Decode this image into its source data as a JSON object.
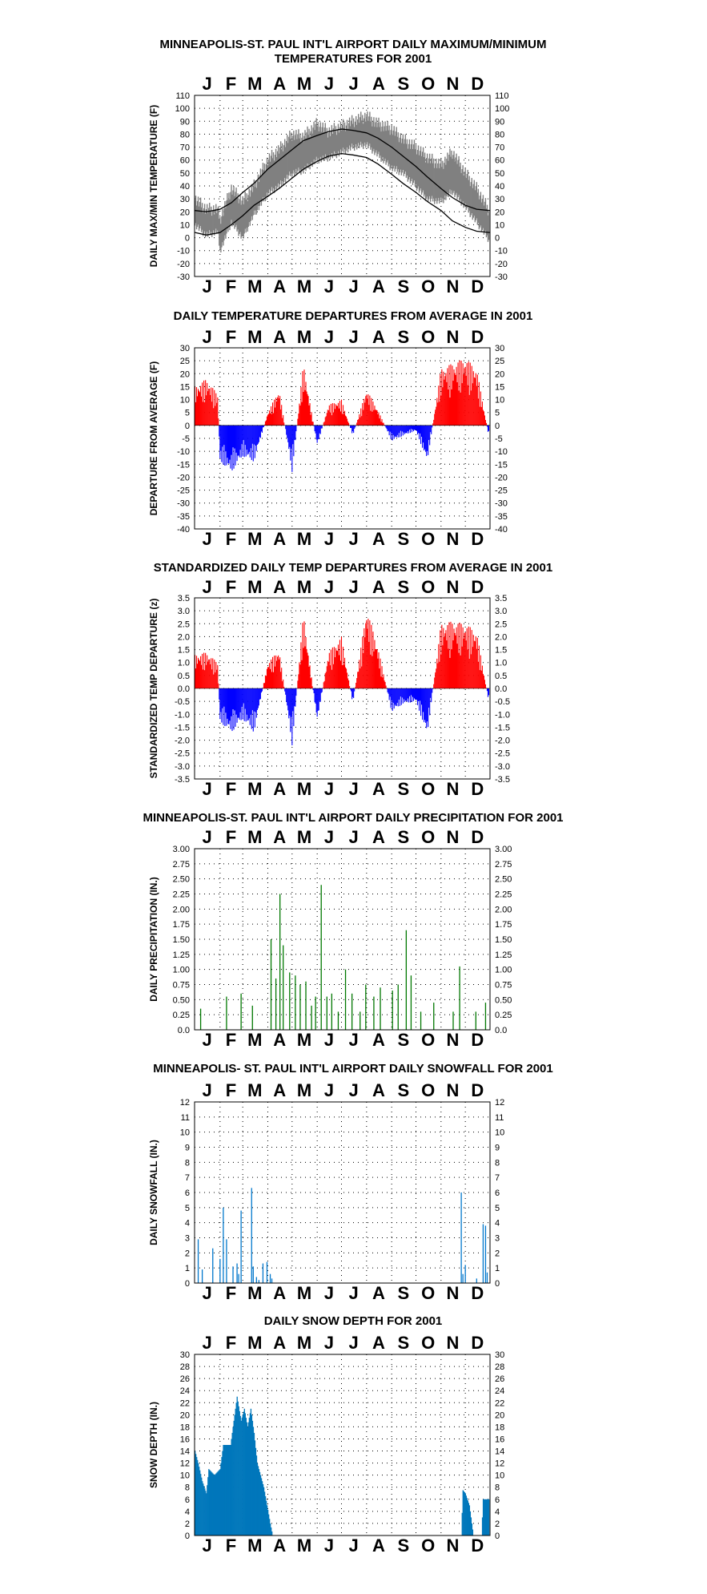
{
  "months": [
    "J",
    "F",
    "M",
    "A",
    "M",
    "J",
    "J",
    "A",
    "S",
    "O",
    "N",
    "D"
  ],
  "chart_data": [
    {
      "id": "temps",
      "type": "line",
      "title_lines": [
        "MINNEAPOLIS-ST. PAUL INT'L AIRPORT DAILY MAXIMUM/MINIMUM",
        "TEMPERATURES FOR 2001"
      ],
      "ylabel": "DAILY MAX/MIN TEMPERATURE (F)",
      "ylim": [
        -30,
        110
      ],
      "ytick_step": 10,
      "ytick_labels": [
        "-30",
        "-20",
        "-10",
        "0",
        "10",
        "20",
        "30",
        "40",
        "50",
        "60",
        "70",
        "80",
        "90",
        "100",
        "110"
      ],
      "grid": true,
      "x_unit": "day of year 2001 (1-365)",
      "series": [
        {
          "role": "daily observed max/min range",
          "color": "#808080",
          "x": [
            1,
            15,
            29,
            32,
            46,
            60,
            74,
            91,
            105,
            121,
            135,
            152,
            166,
            182,
            196,
            213,
            227,
            244,
            258,
            274,
            288,
            305,
            319,
            335,
            349,
            365
          ],
          "max": [
            30,
            22,
            22,
            14,
            38,
            28,
            40,
            60,
            68,
            80,
            78,
            88,
            82,
            86,
            90,
            94,
            88,
            84,
            76,
            70,
            62,
            56,
            66,
            50,
            38,
            20
          ],
          "min": [
            10,
            2,
            5,
            -10,
            12,
            0,
            18,
            34,
            40,
            50,
            52,
            60,
            62,
            66,
            70,
            72,
            64,
            54,
            50,
            40,
            30,
            28,
            36,
            24,
            12,
            -2
          ]
        },
        {
          "role": "normal maximum",
          "color": "#000000",
          "x": [
            1,
            15,
            32,
            46,
            60,
            74,
            91,
            105,
            121,
            135,
            152,
            166,
            182,
            196,
            213,
            227,
            244,
            258,
            274,
            288,
            305,
            319,
            335,
            349,
            365
          ],
          "values": [
            21,
            20,
            22,
            27,
            35,
            42,
            53,
            60,
            68,
            75,
            79,
            82,
            84,
            83,
            81,
            77,
            70,
            63,
            55,
            47,
            38,
            31,
            25,
            22,
            21
          ]
        },
        {
          "role": "normal minimum",
          "color": "#000000",
          "x": [
            1,
            15,
            32,
            46,
            60,
            74,
            91,
            105,
            121,
            135,
            152,
            166,
            182,
            196,
            213,
            227,
            244,
            258,
            274,
            288,
            305,
            319,
            335,
            349,
            365
          ],
          "values": [
            4,
            2,
            4,
            10,
            17,
            25,
            32,
            38,
            46,
            53,
            59,
            63,
            65,
            64,
            62,
            57,
            49,
            42,
            35,
            28,
            21,
            13,
            8,
            5,
            4
          ]
        }
      ]
    },
    {
      "id": "departures",
      "type": "bar",
      "title": "DAILY TEMPERATURE DEPARTURES FROM AVERAGE IN 2001",
      "ylabel": "DEPARTURE FROM AVERAGE (F)",
      "ylim": [
        -40,
        30
      ],
      "ytick_step": 5,
      "ytick_labels": [
        "-40",
        "-35",
        "-30",
        "-25",
        "-20",
        "-15",
        "-10",
        "-5",
        "0",
        "5",
        "10",
        "15",
        "20",
        "25",
        "30"
      ],
      "grid": true,
      "positive_color": "#ff0000",
      "negative_color": "#0000ff",
      "x_unit": "day of year 2001 (1-365)",
      "x": [
        1,
        15,
        29,
        32,
        46,
        60,
        74,
        91,
        105,
        121,
        135,
        152,
        166,
        182,
        196,
        213,
        227,
        244,
        258,
        274,
        288,
        305,
        319,
        335,
        349,
        365
      ],
      "values": [
        15,
        18,
        12,
        -14,
        -18,
        -12,
        -14,
        5,
        14,
        -18,
        24,
        -8,
        8,
        10,
        -4,
        14,
        6,
        -6,
        -4,
        -2,
        -14,
        22,
        24,
        26,
        22,
        -6
      ]
    },
    {
      "id": "standardized",
      "type": "bar",
      "title": "STANDARDIZED DAILY TEMP DEPARTURES FROM AVERAGE IN 2001",
      "ylabel": "STANDARDIZED TEMP DEPARTURE (z)",
      "ylim": [
        -3.5,
        3.5
      ],
      "ytick_step": 0.5,
      "ytick_labels": [
        "-3.5",
        "-3.0",
        "-2.5",
        "-2.0",
        "-1.5",
        "-1.0",
        "-0.5",
        "0.0",
        "0.5",
        "1.0",
        "1.5",
        "2.0",
        "2.5",
        "3.0",
        "3.5"
      ],
      "right_ytick_labels": [
        "-3.5",
        "-3.0",
        "-2.5",
        "-2.0",
        "-1.5",
        "-1.0",
        "-0.5",
        "0.0",
        "0.5",
        "1.0",
        "1.5",
        "2.0",
        "2.5",
        "3.0",
        "3.5"
      ],
      "grid": true,
      "positive_color": "#ff0000",
      "negative_color": "#0000ff",
      "x_unit": "day of year 2001 (1-365)",
      "x": [
        1,
        15,
        29,
        32,
        46,
        60,
        74,
        91,
        105,
        121,
        135,
        152,
        166,
        182,
        196,
        213,
        227,
        244,
        258,
        274,
        288,
        305,
        319,
        335,
        349,
        365
      ],
      "values": [
        1.3,
        1.4,
        1.0,
        -1.3,
        -1.7,
        -1.2,
        -1.7,
        1.0,
        1.5,
        -2.2,
        2.9,
        -1.3,
        1.4,
        2.0,
        -0.6,
        3.1,
        1.6,
        -0.9,
        -0.6,
        -0.5,
        -1.8,
        2.5,
        2.6,
        2.5,
        2.2,
        -0.7
      ]
    },
    {
      "id": "precip",
      "type": "bar",
      "title": "MINNEAPOLIS-ST. PAUL INT'L AIRPORT DAILY PRECIPITATION FOR 2001",
      "ylabel": "DAILY PRECIPITATION (IN.)",
      "ylim": [
        0,
        3
      ],
      "ytick_step": 0.25,
      "ytick_labels": [
        "0.0",
        "0.25",
        "0.50",
        "0.75",
        "1.00",
        "1.25",
        "1.50",
        "1.75",
        "2.00",
        "2.25",
        "2.50",
        "2.75",
        "3.00"
      ],
      "right_ytick_labels": [
        "0.0",
        "0.25",
        "0.50",
        "0.75",
        "1.00",
        "1.25",
        "1.50",
        "1.75",
        "2.00",
        "2.25",
        "2.50",
        "2.75",
        "3.00"
      ],
      "grid": true,
      "color": "#007700",
      "x_unit": "day of year 2001 (1-365)",
      "x": [
        8,
        40,
        58,
        72,
        95,
        101,
        106,
        110,
        118,
        125,
        131,
        138,
        145,
        150,
        157,
        164,
        170,
        178,
        187,
        195,
        205,
        212,
        222,
        230,
        245,
        252,
        262,
        268,
        280,
        296,
        320,
        328,
        348,
        360
      ],
      "values": [
        0.35,
        0.55,
        0.6,
        0.4,
        1.5,
        0.85,
        2.25,
        1.4,
        0.95,
        0.9,
        0.75,
        0.8,
        0.4,
        0.55,
        2.4,
        0.55,
        0.6,
        0.3,
        1.0,
        0.6,
        0.3,
        0.75,
        0.55,
        0.7,
        0.65,
        0.75,
        1.65,
        0.9,
        0.3,
        0.45,
        0.3,
        1.05,
        0.3,
        0.45
      ]
    },
    {
      "id": "snowfall",
      "type": "bar",
      "title": "MINNEAPOLIS- ST. PAUL INT'L AIRPORT DAILY SNOWFALL FOR 2001",
      "ylabel": "DAILY SNOWFALL (IN.)",
      "ylim": [
        0,
        12
      ],
      "ytick_step": 1,
      "ytick_labels": [
        "0",
        "1",
        "2",
        "3",
        "4",
        "5",
        "6",
        "7",
        "8",
        "9",
        "10",
        "11",
        "12"
      ],
      "right_ytick_labels": [
        "0",
        "1",
        "2",
        "3",
        "4",
        "5",
        "6",
        "7",
        "8",
        "9",
        "10",
        "11",
        "12"
      ],
      "grid": true,
      "color": "#0077cc",
      "x_unit": "day of year 2001 (1-365)",
      "x": [
        5,
        10,
        23,
        32,
        36,
        40,
        48,
        53,
        55,
        58,
        71,
        73,
        77,
        80,
        85,
        90,
        94,
        96,
        330,
        332,
        335,
        349,
        357,
        360,
        362
      ],
      "values": [
        2.9,
        0.9,
        2.3,
        1.6,
        5.0,
        2.9,
        1.1,
        1.3,
        0.6,
        4.8,
        6.3,
        1.1,
        0.4,
        0.2,
        1.3,
        1.4,
        0.6,
        0.3,
        6.0,
        0.6,
        1.2,
        0.3,
        3.9,
        3.8,
        0.7
      ]
    },
    {
      "id": "snowdepth",
      "type": "area",
      "title": "DAILY SNOW DEPTH FOR 2001",
      "ylabel": "SNOW DEPTH (IN.)",
      "ylim": [
        0,
        30
      ],
      "ytick_step": 2,
      "ytick_labels": [
        "0",
        "2",
        "4",
        "6",
        "8",
        "10",
        "12",
        "14",
        "16",
        "18",
        "20",
        "22",
        "24",
        "26",
        "28",
        "30"
      ],
      "right_ytick_labels": [
        "0",
        "2",
        "4",
        "6",
        "8",
        "10",
        "12",
        "14",
        "16",
        "18",
        "20",
        "22",
        "24",
        "26",
        "28",
        "30"
      ],
      "grid": true,
      "color": "#0077bb",
      "x_unit": "day of year 2001 (1-365)",
      "x": [
        1,
        5,
        10,
        15,
        18,
        25,
        32,
        36,
        45,
        53,
        58,
        62,
        66,
        70,
        74,
        78,
        82,
        86,
        90,
        94,
        97,
        330,
        332,
        335,
        340,
        345,
        349,
        355,
        357,
        360,
        365
      ],
      "values": [
        14,
        12,
        9,
        7,
        11,
        10,
        11,
        15,
        15,
        23,
        19,
        21,
        18,
        21,
        17,
        12,
        10,
        8,
        5,
        2,
        0,
        0,
        7.5,
        7,
        5,
        0,
        0,
        0,
        6,
        6,
        6
      ]
    }
  ]
}
